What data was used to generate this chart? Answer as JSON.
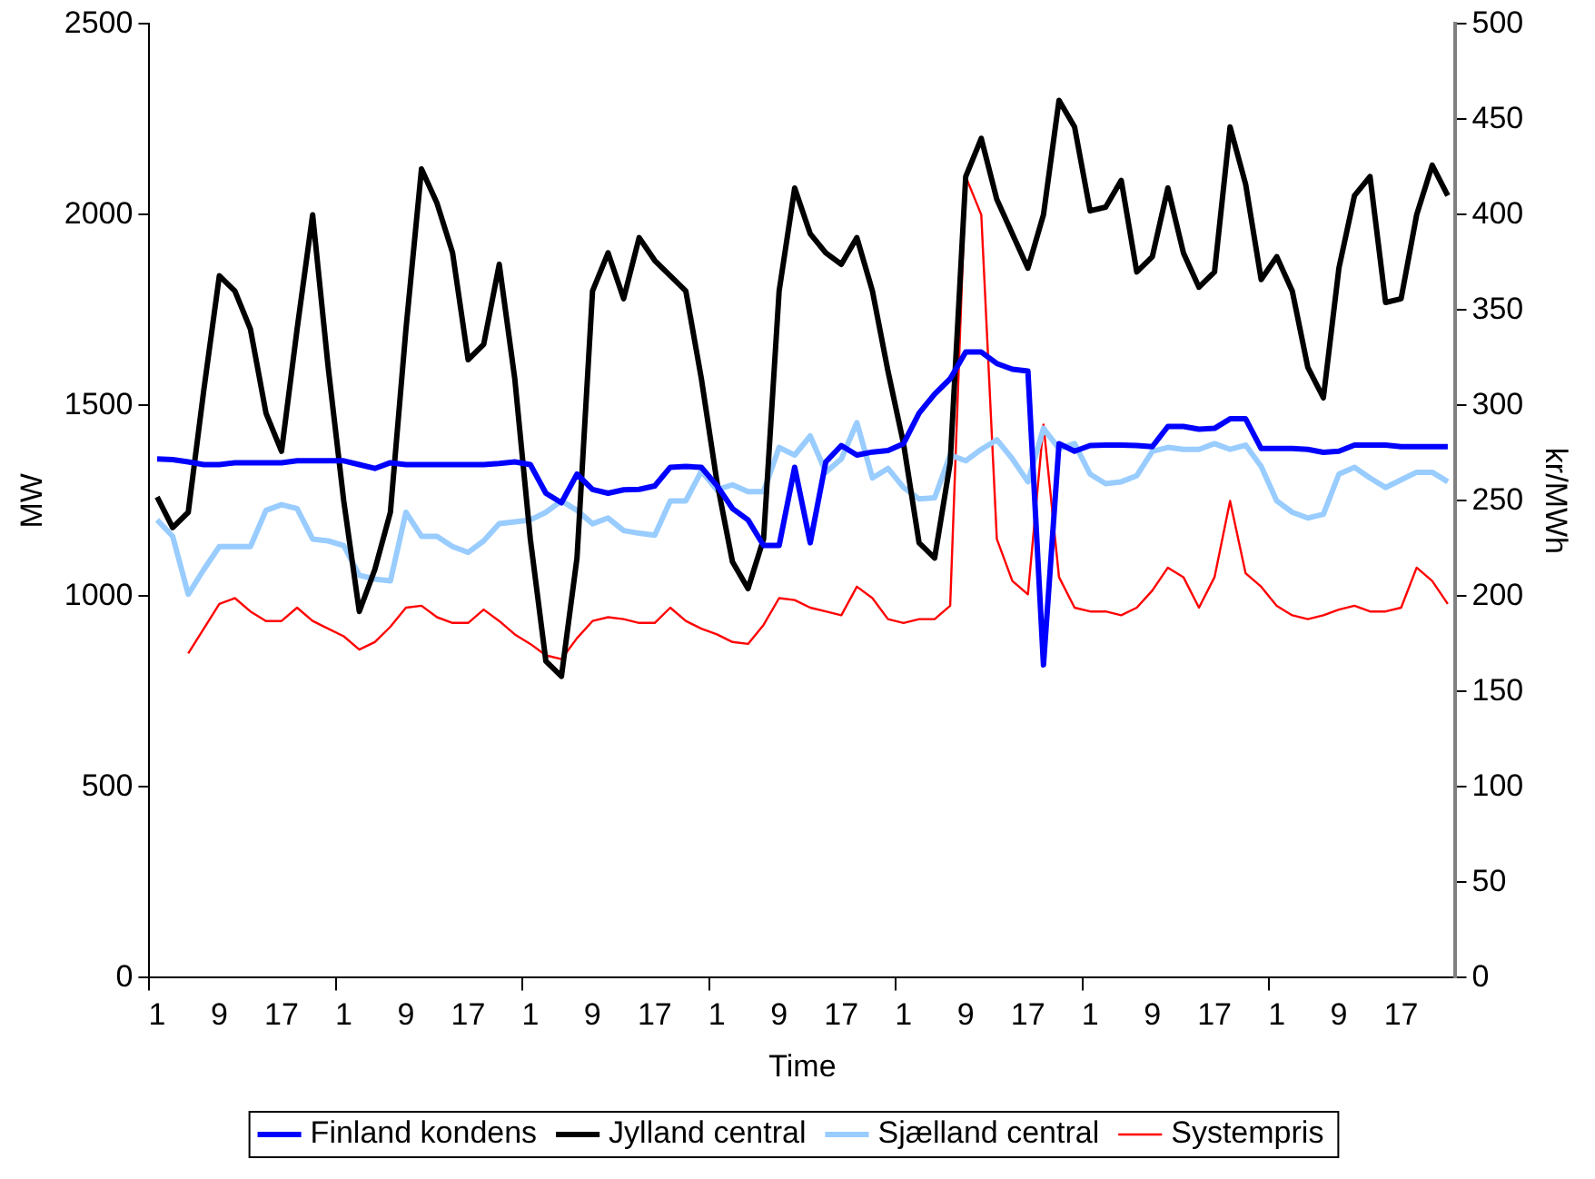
{
  "chart_data": {
    "type": "line",
    "xlabel": "Time",
    "ylabel": "MW",
    "y2label": "kr/MWh",
    "categories": [
      "1",
      null,
      null,
      null,
      "9",
      null,
      null,
      null,
      "17",
      null,
      null,
      null,
      "1",
      null,
      null,
      null,
      "9",
      null,
      null,
      null,
      "17",
      null,
      null,
      null,
      "1",
      null,
      null,
      null,
      "9",
      null,
      null,
      null,
      "17",
      null,
      null,
      null,
      "1",
      null,
      null,
      null,
      "9",
      null,
      null,
      null,
      "17",
      null,
      null,
      null,
      "1",
      null,
      null,
      null,
      "9",
      null,
      null,
      null,
      "17",
      null,
      null,
      null,
      "1",
      null,
      null,
      null,
      "9",
      null,
      null,
      null,
      "17",
      null,
      null,
      null,
      "1",
      null,
      null,
      null,
      "9",
      null,
      null,
      null,
      "17",
      null,
      null,
      null
    ],
    "series": [
      {
        "name": "Finland kondens",
        "color": "#0000ff",
        "values": [
          1360,
          1358,
          1352,
          1345,
          1345,
          1350,
          1350,
          1350,
          1350,
          1355,
          1355,
          1355,
          1355,
          1345,
          1335,
          1350,
          1345,
          1345,
          1345,
          1345,
          1345,
          1345,
          1348,
          1352,
          1345,
          1270,
          1245,
          1320,
          1280,
          1270,
          1279,
          1280,
          1289,
          1338,
          1340,
          1338,
          1290,
          1230,
          1200,
          1133,
          1133,
          1338,
          1140,
          1352,
          1395,
          1370,
          1378,
          1382,
          1400,
          1480,
          1530,
          1570,
          1640,
          1640,
          1610,
          1595,
          1590,
          820,
          1400,
          1380,
          1395,
          1396,
          1396,
          1395,
          1392,
          1445,
          1445,
          1438,
          1440,
          1465,
          1465,
          1387,
          1387,
          1387,
          1385,
          1377,
          1380,
          1396,
          1396,
          1396,
          1392,
          1392,
          1392,
          1392
        ]
      },
      {
        "name": "Jylland central",
        "color": "#000000",
        "values": [
          1260,
          1180,
          1220,
          1540,
          1840,
          1800,
          1700,
          1480,
          1380,
          1700,
          2000,
          1600,
          1250,
          960,
          1070,
          1220,
          1700,
          2120,
          2030,
          1900,
          1620,
          1660,
          1870,
          1570,
          1150,
          830,
          790,
          1100,
          1800,
          1900,
          1780,
          1940,
          1880,
          1840,
          1800,
          1570,
          1300,
          1090,
          1020,
          1150,
          1800,
          2070,
          1950,
          1900,
          1870,
          1940,
          1800,
          1590,
          1400,
          1140,
          1100,
          1350,
          2100,
          2200,
          2040,
          1950,
          1860,
          2000,
          2300,
          2230,
          2010,
          2020,
          2090,
          1850,
          1890,
          2070,
          1900,
          1810,
          1850,
          2230,
          2080,
          1830,
          1890,
          1800,
          1600,
          1520,
          1860,
          2050,
          2100,
          1770,
          1780,
          2000,
          2130,
          2050
        ]
      },
      {
        "name": "Sjælland central",
        "color": "#99ccff",
        "values": [
          1200,
          1157,
          1005,
          1070,
          1130,
          1130,
          1130,
          1225,
          1240,
          1230,
          1150,
          1145,
          1133,
          1055,
          1045,
          1040,
          1220,
          1157,
          1157,
          1130,
          1115,
          1145,
          1190,
          1195,
          1200,
          1220,
          1250,
          1225,
          1190,
          1205,
          1172,
          1165,
          1160,
          1250,
          1250,
          1328,
          1279,
          1292,
          1274,
          1274,
          1390,
          1370,
          1420,
          1325,
          1360,
          1455,
          1310,
          1335,
          1285,
          1255,
          1258,
          1370,
          1355,
          1385,
          1410,
          1360,
          1300,
          1440,
          1387,
          1400,
          1320,
          1295,
          1300,
          1316,
          1380,
          1390,
          1385,
          1385,
          1400,
          1385,
          1396,
          1340,
          1250,
          1220,
          1205,
          1215,
          1320,
          1338,
          1310,
          1285,
          1305,
          1325,
          1325,
          1300
        ]
      },
      {
        "name": "Systempris",
        "color": "#ff0000",
        "axis": "y2",
        "values": [
          null,
          null,
          170,
          183,
          196,
          199,
          192,
          187,
          187,
          194,
          187,
          183,
          179,
          172,
          176,
          184,
          194,
          195,
          189,
          186,
          186,
          193,
          187,
          180,
          175,
          169,
          167,
          178,
          187,
          189,
          188,
          186,
          186,
          194,
          187,
          183,
          180,
          176,
          175,
          185,
          199,
          198,
          194,
          192,
          190,
          205,
          199,
          188,
          186,
          188,
          188,
          195,
          420,
          400,
          230,
          208,
          201,
          290,
          210,
          194,
          192,
          192,
          190,
          194,
          203,
          215,
          210,
          194,
          210,
          250,
          212,
          205,
          195,
          190,
          188,
          190,
          193,
          195,
          192,
          192,
          194,
          215,
          208,
          196
        ]
      }
    ],
    "ylim": [
      0,
      2500
    ],
    "yticks": [
      0,
      500,
      1000,
      1500,
      2000,
      2500
    ],
    "y2lim": [
      0,
      500
    ],
    "y2ticks": [
      0,
      50,
      100,
      150,
      200,
      250,
      300,
      350,
      400,
      450,
      500
    ],
    "grid": false,
    "legend": "bottom",
    "marker": "none",
    "line_style": "solid"
  }
}
